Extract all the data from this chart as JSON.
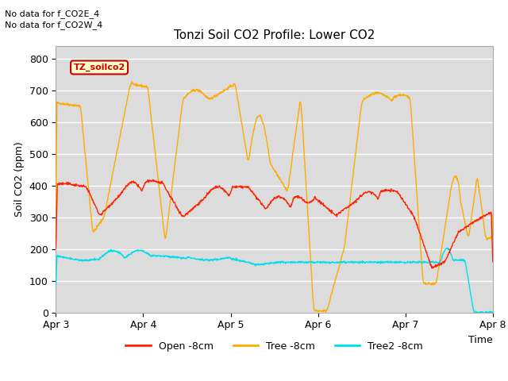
{
  "title": "Tonzi Soil CO2 Profile: Lower CO2",
  "ylabel": "Soil CO2 (ppm)",
  "xlabel": "Time",
  "annotations": [
    "No data for f_CO2E_4",
    "No data for f_CO2W_4"
  ],
  "box_label": "TZ_soilco2",
  "ylim": [
    0,
    840
  ],
  "yticks": [
    0,
    100,
    200,
    300,
    400,
    500,
    600,
    700,
    800
  ],
  "xtick_labels": [
    "Apr 3",
    "Apr 4",
    "Apr 5",
    "Apr 6",
    "Apr 7",
    "Apr 8"
  ],
  "colors": {
    "open": "#ff2200",
    "tree": "#ffaa00",
    "tree2": "#00ddee",
    "background": "#dcdcdc",
    "grid": "#ffffff"
  },
  "legend_labels": [
    "Open -8cm",
    "Tree -8cm",
    "Tree2 -8cm"
  ],
  "fig_bg": "#ffffff"
}
